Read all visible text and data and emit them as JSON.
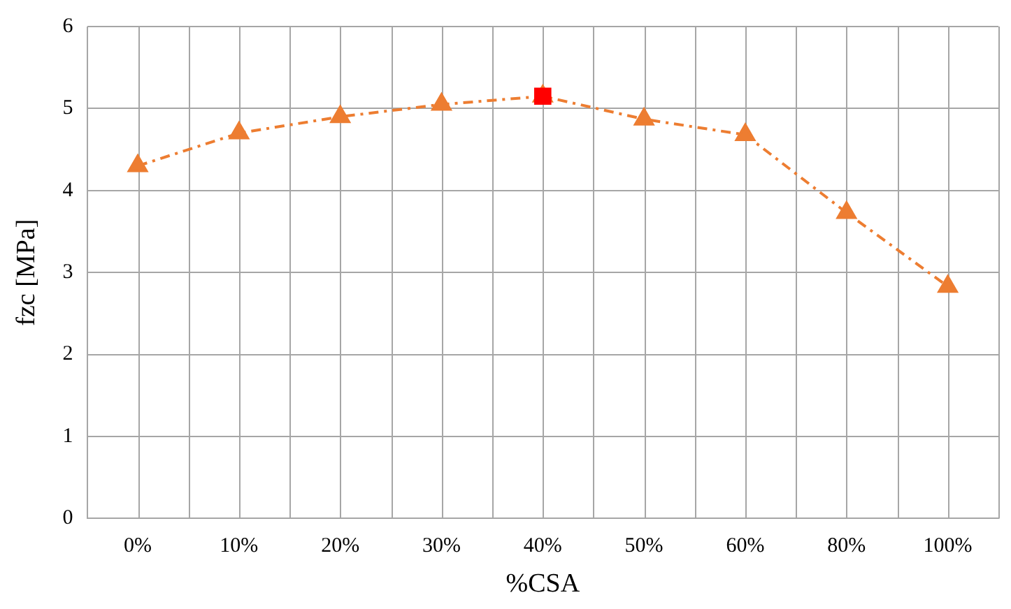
{
  "chart_data": {
    "type": "line",
    "xlabel": "%CSA",
    "ylabel": "fzc [MPa]",
    "categories": [
      "0%",
      "10%",
      "20%",
      "30%",
      "40%",
      "50%",
      "60%",
      "80%",
      "100%"
    ],
    "series": [
      {
        "color": "#ed7d31",
        "values": [
          4.3,
          4.7,
          4.9,
          5.05,
          5.15,
          4.87,
          4.68,
          3.73,
          2.83
        ],
        "marker": "triangle",
        "line_style": "dashed"
      },
      {
        "type": "scatter",
        "color": "#ff0000",
        "x": [
          "40%"
        ],
        "values": [
          5.15
        ],
        "marker": "square"
      }
    ],
    "ylim": [
      0,
      6
    ],
    "yticks": [
      0,
      1,
      2,
      3,
      4,
      5,
      6
    ],
    "grid": true,
    "legend": false
  }
}
